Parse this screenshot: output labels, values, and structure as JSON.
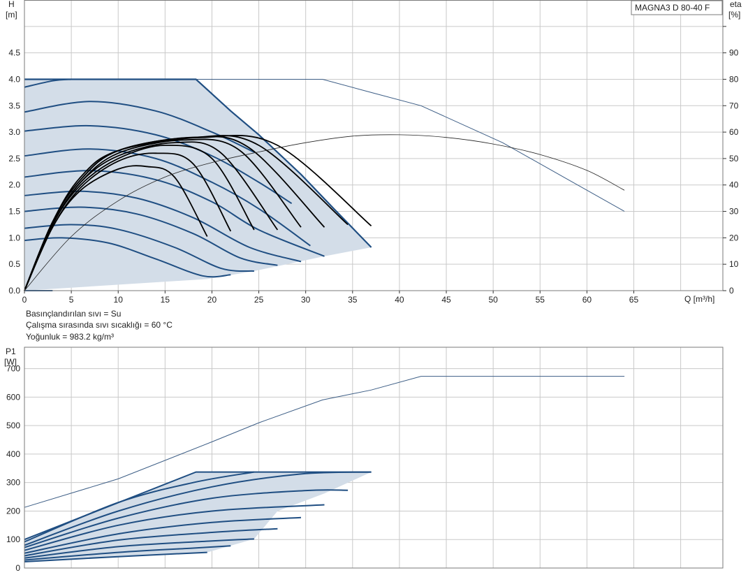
{
  "model_label": "MAGNA3 D 80-40 F",
  "info_lines": [
    "Basınçlandırılan sıvı = Su",
    "Çalışma sırasında sıvı sıcaklığı = 60 °C",
    "Yoğunluk = 983.2 kg/m³"
  ],
  "colors": {
    "accent": "#1f4e82",
    "area_fill": "#d3dde8",
    "grid": "#c9c9c9",
    "efficiency": "#000000"
  },
  "chart_data": [
    {
      "type": "line",
      "id": "head",
      "title": "MAGNA3 D 80-40 F",
      "x_label": "Q [m³/h]",
      "y_label_line1": "H",
      "y_label_line2": "[m]",
      "y2_label_line1": "eta",
      "y2_label_line2": "[%]",
      "xlim": [
        0,
        74.5
      ],
      "ylim": [
        0,
        5.5
      ],
      "y2lim": [
        0,
        110
      ],
      "x_ticks": [
        0,
        5,
        10,
        15,
        20,
        25,
        30,
        35,
        40,
        45,
        50,
        55,
        60,
        65
      ],
      "y_ticks": [
        "0.0",
        "0.5",
        "1.0",
        "1.5",
        "2.0",
        "2.5",
        "3.0",
        "3.5",
        "4.0",
        "4.5"
      ],
      "y2_ticks": [
        0,
        10,
        20,
        30,
        40,
        50,
        60,
        70,
        80,
        90
      ],
      "grid": true,
      "operating_area_boundary": [
        [
          0,
          4.0
        ],
        [
          18.3,
          4.0
        ],
        [
          22,
          3.4
        ],
        [
          25,
          2.95
        ],
        [
          29.5,
          2.2
        ],
        [
          33,
          1.55
        ],
        [
          37,
          0.82
        ],
        [
          32,
          0.65
        ],
        [
          24.5,
          0.37
        ],
        [
          19.5,
          0.22
        ],
        [
          0,
          0
        ]
      ],
      "max_head_curve": [
        [
          0,
          4.0
        ],
        [
          18.3,
          4.0
        ],
        [
          22,
          3.4
        ],
        [
          25,
          2.95
        ],
        [
          29.5,
          2.2
        ],
        [
          33,
          1.55
        ],
        [
          37,
          0.82
        ]
      ],
      "head_curves": [
        [
          [
            0,
            3.85
          ],
          [
            3,
            3.97
          ],
          [
            5,
            4.0
          ]
        ],
        [
          [
            0,
            3.38
          ],
          [
            7,
            3.58
          ],
          [
            14,
            3.4
          ],
          [
            20,
            3.0
          ],
          [
            24.5,
            2.62
          ]
        ],
        [
          [
            0,
            3.02
          ],
          [
            7,
            3.12
          ],
          [
            14,
            2.95
          ],
          [
            20,
            2.55
          ],
          [
            25,
            2.05
          ],
          [
            28.5,
            1.65
          ]
        ],
        [
          [
            0,
            2.55
          ],
          [
            7,
            2.68
          ],
          [
            14,
            2.5
          ],
          [
            20,
            2.05
          ],
          [
            25,
            1.55
          ],
          [
            30.5,
            0.85
          ]
        ],
        [
          [
            0,
            2.15
          ],
          [
            7,
            2.27
          ],
          [
            14,
            2.1
          ],
          [
            20,
            1.68
          ],
          [
            25,
            1.15
          ],
          [
            32,
            0.65
          ]
        ],
        [
          [
            0,
            1.8
          ],
          [
            6,
            1.88
          ],
          [
            12,
            1.75
          ],
          [
            18,
            1.38
          ],
          [
            24,
            0.82
          ],
          [
            29.5,
            0.55
          ]
        ],
        [
          [
            0,
            1.5
          ],
          [
            6,
            1.58
          ],
          [
            12,
            1.45
          ],
          [
            18,
            1.08
          ],
          [
            23,
            0.62
          ],
          [
            27,
            0.48
          ]
        ],
        [
          [
            0,
            1.18
          ],
          [
            5,
            1.25
          ],
          [
            10,
            1.16
          ],
          [
            16,
            0.82
          ],
          [
            21,
            0.42
          ],
          [
            24.5,
            0.37
          ]
        ],
        [
          [
            0,
            0.95
          ],
          [
            4,
            1.0
          ],
          [
            9,
            0.9
          ],
          [
            14,
            0.6
          ],
          [
            19,
            0.28
          ],
          [
            22,
            0.3
          ]
        ],
        [
          [
            0,
            0.0
          ],
          [
            3,
            0.0
          ]
        ]
      ],
      "efficiency_curves": [
        [
          [
            0,
            0
          ],
          [
            3,
            24
          ],
          [
            6,
            38
          ],
          [
            10,
            46
          ],
          [
            13,
            47
          ],
          [
            16,
            43
          ],
          [
            19.5,
            20.5
          ]
        ],
        [
          [
            0,
            0
          ],
          [
            3,
            24
          ],
          [
            6,
            39
          ],
          [
            10,
            49
          ],
          [
            14,
            52
          ],
          [
            18,
            48
          ],
          [
            22,
            22.5
          ]
        ],
        [
          [
            0,
            0
          ],
          [
            3,
            25
          ],
          [
            6,
            40
          ],
          [
            10,
            50
          ],
          [
            15,
            55
          ],
          [
            20,
            50
          ],
          [
            24.5,
            23
          ]
        ],
        [
          [
            0,
            0
          ],
          [
            3,
            25
          ],
          [
            6,
            41
          ],
          [
            10,
            51
          ],
          [
            16,
            56
          ],
          [
            21,
            52
          ],
          [
            27,
            23
          ]
        ],
        [
          [
            0,
            0
          ],
          [
            3,
            25
          ],
          [
            6,
            41
          ],
          [
            10,
            52
          ],
          [
            17,
            57
          ],
          [
            23,
            53
          ],
          [
            29.5,
            24
          ]
        ],
        [
          [
            0,
            0
          ],
          [
            3,
            26
          ],
          [
            6,
            42
          ],
          [
            10,
            53
          ],
          [
            18,
            58
          ],
          [
            24,
            54
          ],
          [
            32,
            24
          ]
        ],
        [
          [
            0,
            0
          ],
          [
            3,
            26
          ],
          [
            6,
            42
          ],
          [
            10,
            53
          ],
          [
            18,
            58
          ],
          [
            25,
            55
          ],
          [
            34.5,
            25
          ]
        ],
        [
          [
            0,
            0
          ],
          [
            3,
            26
          ],
          [
            6,
            43
          ],
          [
            10,
            53
          ],
          [
            19,
            58
          ],
          [
            27,
            55
          ],
          [
            37,
            24.5
          ]
        ]
      ],
      "reference_head_curve": [
        [
          18.3,
          4.0
        ],
        [
          31.8,
          4.0
        ],
        [
          37,
          3.75
        ],
        [
          42.3,
          3.5
        ],
        [
          51,
          2.8
        ],
        [
          57,
          2.2
        ],
        [
          64,
          1.5
        ]
      ],
      "reference_efficiency_curve": [
        [
          0,
          0
        ],
        [
          5,
          20.5
        ],
        [
          10,
          34
        ],
        [
          15,
          43
        ],
        [
          20,
          48.5
        ],
        [
          25,
          52.5
        ],
        [
          30,
          56
        ],
        [
          35,
          58.5
        ],
        [
          40,
          59
        ],
        [
          45,
          58
        ],
        [
          50,
          55.5
        ],
        [
          55,
          51.5
        ],
        [
          60,
          45.5
        ],
        [
          64,
          38
        ]
      ]
    },
    {
      "type": "line",
      "id": "power",
      "title": "",
      "x_label": "",
      "y_label_line1": "P1",
      "y_label_line2": "[W]",
      "xlim": [
        0,
        74.5
      ],
      "ylim": [
        0,
        775
      ],
      "y_ticks": [
        0,
        100,
        200,
        300,
        400,
        500,
        600,
        700
      ],
      "grid": true,
      "operating_area_boundary": [
        [
          0,
          100
        ],
        [
          18.3,
          337
        ],
        [
          37,
          337
        ],
        [
          32,
          262
        ],
        [
          27,
          200
        ],
        [
          24.5,
          102
        ],
        [
          19.5,
          55
        ],
        [
          0,
          20
        ]
      ],
      "power_curves": [
        [
          [
            0,
            100
          ],
          [
            18.3,
            337
          ],
          [
            37,
            337
          ]
        ],
        [
          [
            0,
            92
          ],
          [
            10,
            230
          ],
          [
            18,
            300
          ],
          [
            24.5,
            337
          ]
        ],
        [
          [
            0,
            80
          ],
          [
            10,
            200
          ],
          [
            20,
            285
          ],
          [
            29.5,
            330
          ],
          [
            37,
            337
          ]
        ],
        [
          [
            0,
            72
          ],
          [
            10,
            175
          ],
          [
            20,
            245
          ],
          [
            30,
            272
          ],
          [
            34.5,
            273
          ]
        ],
        [
          [
            0,
            62
          ],
          [
            10,
            150
          ],
          [
            20,
            200
          ],
          [
            32,
            222
          ]
        ],
        [
          [
            0,
            52
          ],
          [
            10,
            120
          ],
          [
            20,
            160
          ],
          [
            29.5,
            177
          ]
        ],
        [
          [
            0,
            43
          ],
          [
            10,
            98
          ],
          [
            20,
            125
          ],
          [
            27,
            138
          ]
        ],
        [
          [
            0,
            35
          ],
          [
            10,
            75
          ],
          [
            20,
            95
          ],
          [
            24.5,
            102
          ]
        ],
        [
          [
            0,
            28
          ],
          [
            10,
            55
          ],
          [
            18,
            70
          ],
          [
            22,
            78
          ]
        ],
        [
          [
            0,
            22
          ],
          [
            10,
            40
          ],
          [
            19.5,
            55
          ]
        ]
      ],
      "reference_power_curve": [
        [
          0,
          213
        ],
        [
          10,
          313
        ],
        [
          20,
          443
        ],
        [
          25,
          510
        ],
        [
          31.8,
          590
        ],
        [
          37,
          625
        ],
        [
          42.3,
          673
        ],
        [
          64,
          673
        ]
      ]
    }
  ]
}
